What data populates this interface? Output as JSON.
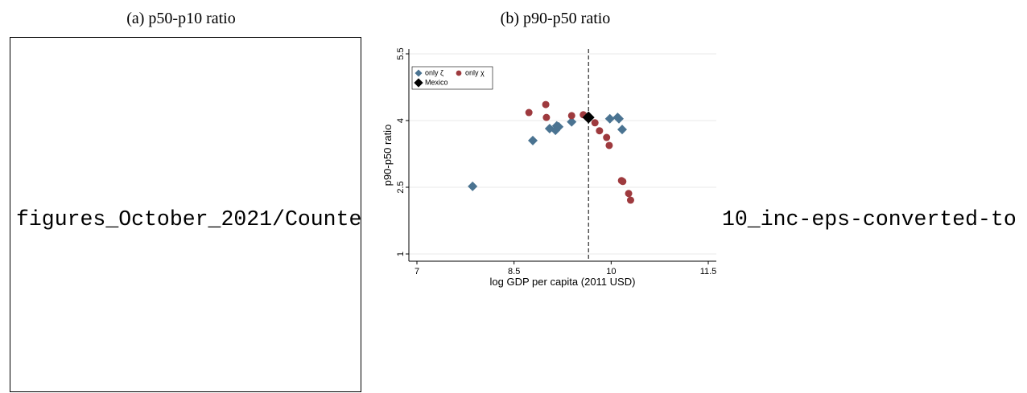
{
  "panel_a": {
    "caption": "(a) p50-p10 ratio",
    "missing_image_text": [
      "figures_October_2021/Counte",
      "10_inc-eps-converted-to"
    ]
  },
  "panel_b": {
    "caption": "(b) p90-p50 ratio"
  },
  "chart_data": {
    "type": "scatter",
    "xlabel": "log GDP per capita (2011 USD)",
    "ylabel": "p90-p50 ratio",
    "xlim": [
      7,
      11.5
    ],
    "xticks": [
      7,
      8.5,
      10,
      11.5
    ],
    "ylim": [
      1,
      5.5
    ],
    "yticks": [
      1,
      2.5,
      4,
      5.5
    ],
    "grid": true,
    "legend": "top-left",
    "vline": 9.65,
    "series": [
      {
        "name": "only ζ",
        "color": "#4a7391",
        "marker": "diamond",
        "x": [
          7.86,
          8.79,
          9.05,
          9.16,
          9.14,
          9.19,
          9.39,
          9.98,
          10.1,
          10.12,
          10.17
        ],
        "values": [
          2.52,
          3.55,
          3.82,
          3.88,
          3.78,
          3.86,
          3.97,
          4.04,
          4.07,
          4.04,
          3.8
        ]
      },
      {
        "name": "only χ",
        "color": "#9e3a3e",
        "marker": "circle",
        "x": [
          8.73,
          8.99,
          9.0,
          9.39,
          9.57,
          9.75,
          9.82,
          9.93,
          9.97,
          10.16,
          10.18,
          10.27,
          10.3
        ],
        "values": [
          4.18,
          4.36,
          4.07,
          4.11,
          4.13,
          3.95,
          3.77,
          3.62,
          3.44,
          2.65,
          2.63,
          2.36,
          2.21
        ]
      },
      {
        "name": "Mexico",
        "color": "#000000",
        "marker": "diamond-large",
        "x": [
          9.65
        ],
        "values": [
          4.07
        ]
      }
    ]
  }
}
